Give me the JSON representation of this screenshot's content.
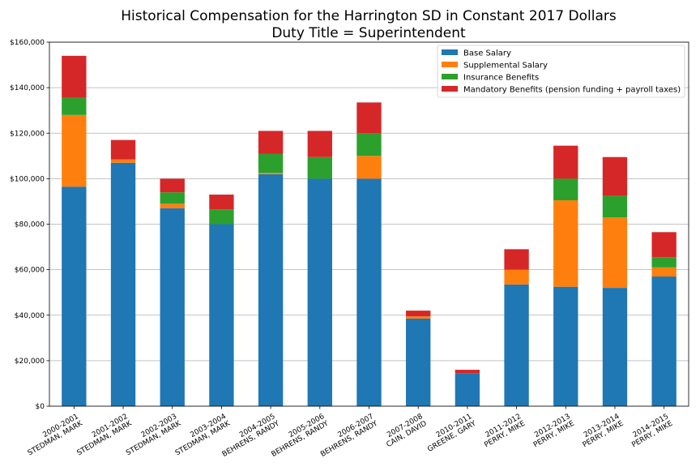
{
  "chart_data": {
    "type": "bar",
    "stacked": true,
    "title": "Historical Compensation for the Harrington SD in Constant 2017 Dollars",
    "subtitle": "Duty Title = Superintendent",
    "xlabel": "",
    "ylabel": "",
    "ylim": [
      0,
      160000
    ],
    "y_ticks": [
      "$0",
      "$20,000",
      "$40,000",
      "$60,000",
      "$80,000",
      "$100,000",
      "$120,000",
      "$140,000",
      "$160,000"
    ],
    "y_tick_values": [
      0,
      20000,
      40000,
      60000,
      80000,
      100000,
      120000,
      140000,
      160000
    ],
    "grid": "horizontal",
    "legend_position": "top-right",
    "categories": [
      [
        "2000-2001",
        "STEDMAN, MARK"
      ],
      [
        "2001-2002",
        "STEDMAN, MARK"
      ],
      [
        "2002-2003",
        "STEDMAN, MARK"
      ],
      [
        "2003-2004",
        "STEDMAN, MARK"
      ],
      [
        "2004-2005",
        "BEHRENS, RANDY"
      ],
      [
        "2005-2006",
        "BEHRENS, RANDY"
      ],
      [
        "2006-2007",
        "BEHRENS, RANDY"
      ],
      [
        "2007-2008",
        "CAIN, DAVID"
      ],
      [
        "2010-2011",
        "GREENE, GARY"
      ],
      [
        "2011-2012",
        "PERRY, MIKE"
      ],
      [
        "2012-2013",
        "PERRY, MIKE"
      ],
      [
        "2013-2014",
        "PERRY, MIKE"
      ],
      [
        "2014-2015",
        "PERRY, MIKE"
      ]
    ],
    "series": [
      {
        "name": "Base Salary",
        "color": "#1f77b4",
        "values": [
          96500,
          107000,
          87000,
          80000,
          102000,
          100000,
          100000,
          38500,
          14500,
          53500,
          52500,
          52000,
          57000
        ]
      },
      {
        "name": "Supplemental Salary",
        "color": "#ff7f0e",
        "values": [
          31500,
          1500,
          2000,
          0,
          500,
          0,
          10000,
          1000,
          0,
          6500,
          38000,
          31000,
          4000
        ]
      },
      {
        "name": "Insurance Benefits",
        "color": "#2ca02c",
        "values": [
          7500,
          0,
          5000,
          6500,
          8500,
          9500,
          10000,
          0,
          0,
          0,
          9500,
          9500,
          4500
        ]
      },
      {
        "name": "Mandatory Benefits (pension funding + payroll taxes)",
        "color": "#d62728",
        "values": [
          18500,
          8500,
          6000,
          6500,
          10000,
          11500,
          13500,
          2500,
          1500,
          9000,
          14500,
          17000,
          11000
        ]
      }
    ]
  }
}
